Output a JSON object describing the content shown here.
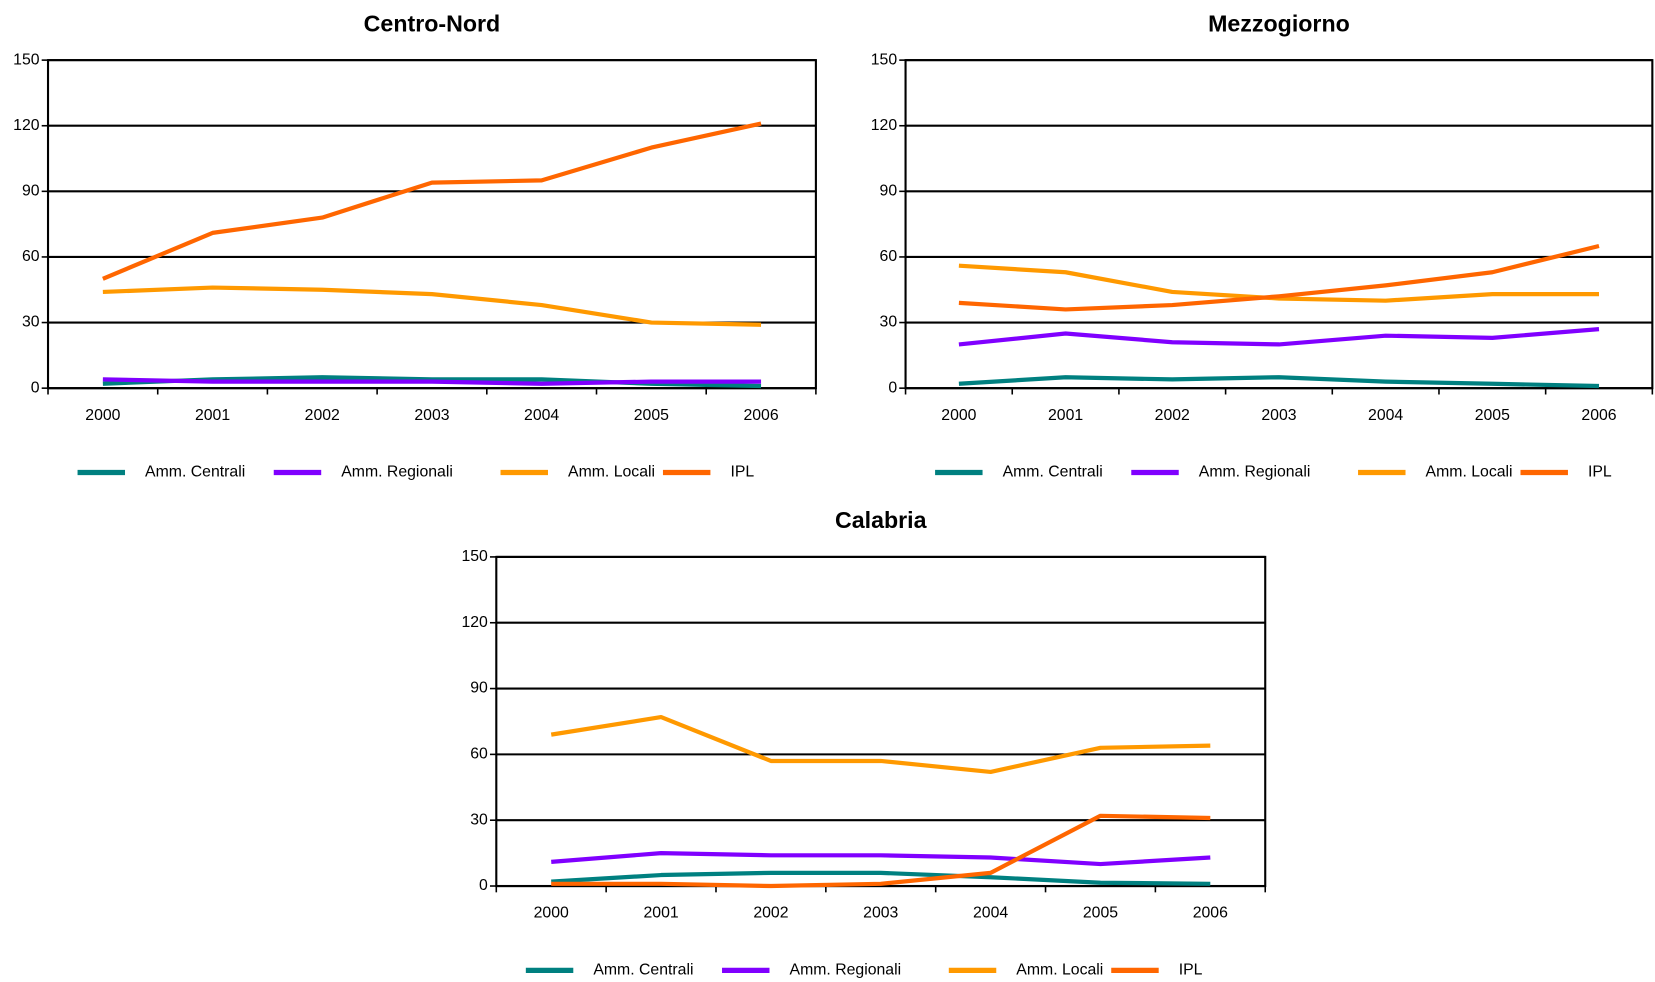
{
  "chart_data": [
    {
      "type": "line",
      "title": "Centro-Nord",
      "categories": [
        "2000",
        "2001",
        "2002",
        "2003",
        "2004",
        "2005",
        "2006"
      ],
      "series": [
        {
          "name": "Amm. Centrali",
          "color": "#008080",
          "values": [
            2,
            4,
            5,
            4,
            4,
            2,
            1
          ]
        },
        {
          "name": "Amm. Regionali",
          "color": "#8000ff",
          "values": [
            4,
            3,
            3,
            3,
            2,
            3,
            3
          ]
        },
        {
          "name": "Amm. Locali",
          "color": "#ff9900",
          "values": [
            44,
            46,
            45,
            43,
            38,
            30,
            29
          ]
        },
        {
          "name": "IPL",
          "color": "#ff6600",
          "values": [
            50,
            71,
            78,
            94,
            95,
            110,
            121
          ]
        }
      ],
      "ylim": [
        0,
        150
      ],
      "yticks": [
        0,
        30,
        60,
        90,
        120,
        150
      ],
      "grid": true
    },
    {
      "type": "line",
      "title": "Mezzogiorno",
      "categories": [
        "2000",
        "2001",
        "2002",
        "2003",
        "2004",
        "2005",
        "2006"
      ],
      "series": [
        {
          "name": "Amm. Centrali",
          "color": "#008080",
          "values": [
            2,
            5,
            4,
            5,
            3,
            2,
            1
          ]
        },
        {
          "name": "Amm. Regionali",
          "color": "#8000ff",
          "values": [
            20,
            25,
            21,
            20,
            24,
            23,
            27
          ]
        },
        {
          "name": "Amm. Locali",
          "color": "#ff9900",
          "values": [
            56,
            53,
            44,
            41,
            40,
            43,
            43
          ]
        },
        {
          "name": "IPL",
          "color": "#ff6600",
          "values": [
            39,
            36,
            38,
            42,
            47,
            53,
            65
          ]
        }
      ],
      "ylim": [
        0,
        150
      ],
      "yticks": [
        0,
        30,
        60,
        90,
        120,
        150
      ],
      "grid": true
    },
    {
      "type": "line",
      "title": "Calabria",
      "categories": [
        "2000",
        "2001",
        "2002",
        "2003",
        "2004",
        "2005",
        "2006"
      ],
      "series": [
        {
          "name": "Amm. Centrali",
          "color": "#008080",
          "values": [
            2,
            5,
            6,
            6,
            4,
            1.5,
            1
          ]
        },
        {
          "name": "Amm. Regionali",
          "color": "#8000ff",
          "values": [
            11,
            15,
            14,
            14,
            13,
            10,
            13
          ]
        },
        {
          "name": "Amm. Locali",
          "color": "#ff9900",
          "values": [
            69,
            77,
            57,
            57,
            52,
            63,
            64
          ]
        },
        {
          "name": "IPL",
          "color": "#ff6600",
          "values": [
            1,
            1,
            0,
            1,
            6,
            32,
            31
          ]
        }
      ],
      "ylim": [
        0,
        150
      ],
      "yticks": [
        0,
        30,
        60,
        90,
        120,
        150
      ],
      "grid": true
    }
  ]
}
